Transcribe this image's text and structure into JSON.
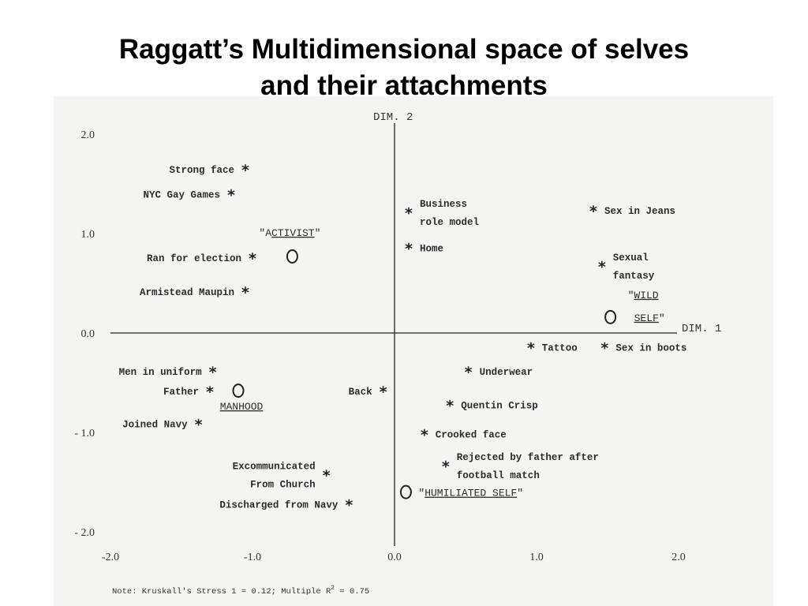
{
  "slide": {
    "title_line1": "Raggatt’s Multidimensional space of selves",
    "title_line2": "and their attachments"
  },
  "chart_data": {
    "type": "scatter",
    "xlabel": "DIM. 1",
    "ylabel": "DIM. 2",
    "xlim": [
      -2.0,
      2.0
    ],
    "ylim": [
      -2.0,
      2.0
    ],
    "xticks": [
      "-2.0",
      "-1.0",
      "0.0",
      "1.0",
      "2.0"
    ],
    "yticks": [
      "2.0",
      "1.0",
      "0.0",
      "- 1.0",
      "- 2.0"
    ],
    "grid": false,
    "attachments": [
      {
        "label": [
          "Strong face"
        ],
        "x": -1.05,
        "y": 1.65
      },
      {
        "label": [
          "NYC Gay Games"
        ],
        "x": -1.15,
        "y": 1.4
      },
      {
        "label": [
          "Business",
          "role model"
        ],
        "x": 0.1,
        "y": 1.22
      },
      {
        "label": [
          "Sex in Jeans"
        ],
        "x": 1.4,
        "y": 1.24
      },
      {
        "label": [
          "Home"
        ],
        "x": 0.1,
        "y": 0.86
      },
      {
        "label": [
          "Sexual",
          "fantasy"
        ],
        "x": 1.46,
        "y": 0.68
      },
      {
        "label": [
          "Ran for election"
        ],
        "x": -1.0,
        "y": 0.76
      },
      {
        "label": [
          "Armistead Maupin"
        ],
        "x": -1.05,
        "y": 0.42
      },
      {
        "label": [
          "Tattoo"
        ],
        "x": 0.96,
        "y": -0.14
      },
      {
        "label": [
          "Sex in boots"
        ],
        "x": 1.48,
        "y": -0.14
      },
      {
        "label": [
          "Men in uniform"
        ],
        "x": -1.28,
        "y": -0.38
      },
      {
        "label": [
          "Underwear"
        ],
        "x": 0.52,
        "y": -0.38
      },
      {
        "label": [
          "Father"
        ],
        "x": -1.3,
        "y": -0.58
      },
      {
        "label": [
          "Back"
        ],
        "x": -0.08,
        "y": -0.58
      },
      {
        "label": [
          "Quentin Crisp"
        ],
        "x": 0.39,
        "y": -0.72
      },
      {
        "label": [
          "Joined Navy"
        ],
        "x": -1.38,
        "y": -0.91
      },
      {
        "label": [
          "Crooked face"
        ],
        "x": 0.21,
        "y": -1.01
      },
      {
        "label": [
          "Rejected by father after",
          "football match"
        ],
        "x": 0.36,
        "y": -1.33
      },
      {
        "label": [
          "Excommunicated",
          "From Church"
        ],
        "x": -0.48,
        "y": -1.42
      },
      {
        "label": [
          "Discharged from Navy"
        ],
        "x": -0.32,
        "y": -1.72
      }
    ],
    "selves": [
      {
        "prefix": "\"A",
        "underlined": "CTIVIST",
        "suffix": "\"",
        "x": -0.72,
        "y": 0.77
      },
      {
        "prefix": "",
        "underlined": "MANHOOD",
        "suffix": "",
        "x": -1.1,
        "y": -0.58
      },
      {
        "prefix": "\"",
        "underlined": "WILD",
        "suffix": "",
        "line2_underlined": "SELF",
        "line2_suffix": "\"",
        "x": 1.52,
        "y": 0.16
      },
      {
        "prefix": "\"",
        "underlined": "HUMILIATED SELF",
        "suffix": "\"",
        "x": 0.08,
        "y": -1.6
      }
    ],
    "note_prefix": "Note: Kruskall's Stress 1 = 0.12; Multiple R",
    "note_sup": "2",
    "note_suffix": " = 0.75"
  }
}
